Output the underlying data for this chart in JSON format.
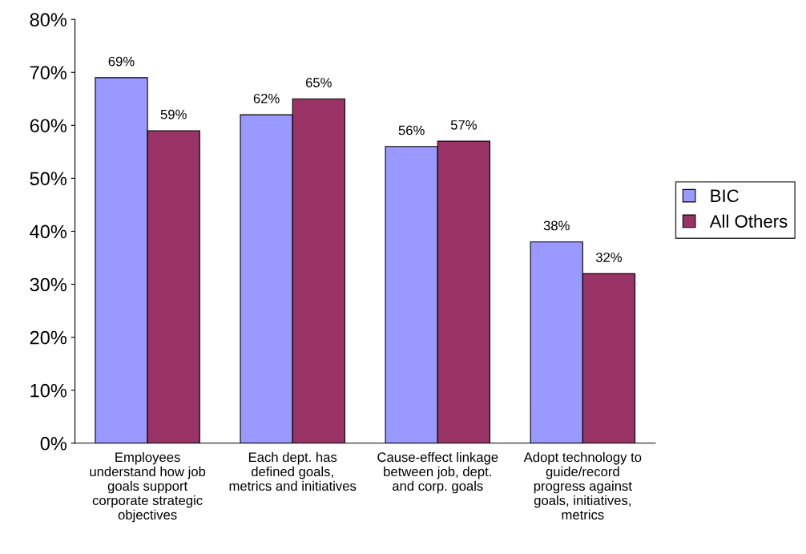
{
  "chart_data": {
    "type": "bar",
    "categories": [
      "Employees\nunderstand how job\ngoals support\ncorporate strategic\nobjectives",
      "Each dept. has\ndefined goals,\nmetrics and initiatives",
      "Cause-effect linkage\nbetween job, dept.\nand corp. goals",
      "Adopt technology to\nguide/record\nprogress against\ngoals, initiatives,\nmetrics"
    ],
    "series": [
      {
        "name": "BIC",
        "color": "#9999ff",
        "values": [
          69,
          62,
          56,
          38
        ],
        "value_labels": [
          "69%",
          "62%",
          "56%",
          "38%"
        ]
      },
      {
        "name": "All Others",
        "color": "#993366",
        "values": [
          59,
          65,
          57,
          32
        ],
        "value_labels": [
          "59%",
          "65%",
          "57%",
          "32%"
        ]
      }
    ],
    "ylim": [
      0,
      80
    ],
    "yticks": [
      {
        "value": 0,
        "label": "0%"
      },
      {
        "value": 10,
        "label": "10%"
      },
      {
        "value": 20,
        "label": "20%"
      },
      {
        "value": 30,
        "label": "30%"
      },
      {
        "value": 40,
        "label": "40%"
      },
      {
        "value": 50,
        "label": "50%"
      },
      {
        "value": 60,
        "label": "60%"
      },
      {
        "value": 70,
        "label": "70%"
      },
      {
        "value": 80,
        "label": "80%"
      }
    ],
    "legend": "right",
    "grid": false
  }
}
